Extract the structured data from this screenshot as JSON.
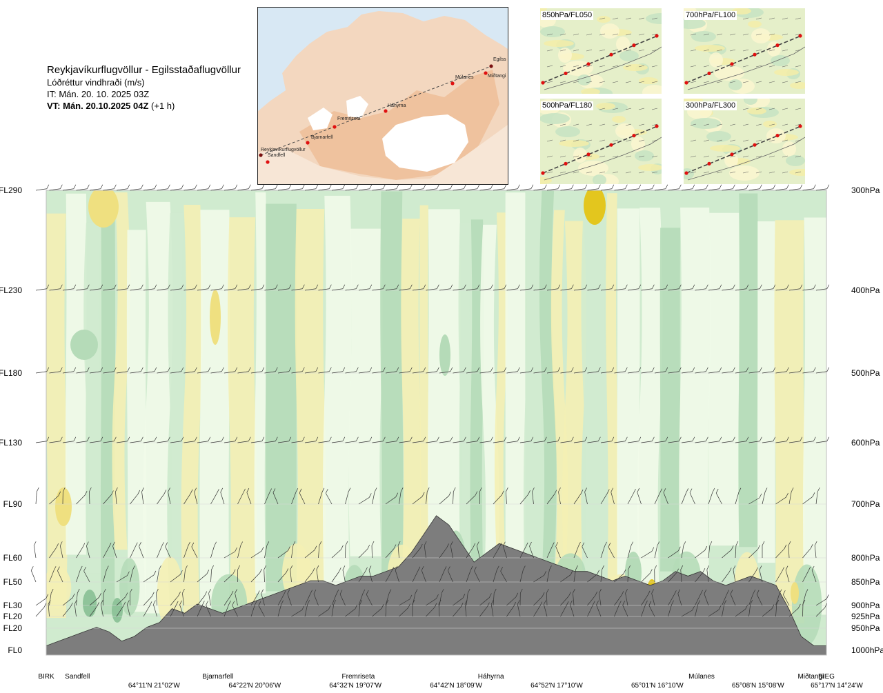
{
  "header": {
    "title": "Reykjavíkurflugvöllur - Egilsstaðaflugvöllur",
    "subtitle": "Lóðréttur vindhraði (m/s)",
    "issue_time": "IT: Mán. 20. 10. 2025 03Z",
    "valid_time": "VT: Mán. 20.10.2025 04Z",
    "valid_offset": "(+1 h)"
  },
  "route_map": {
    "points": [
      {
        "name": "Reykjavíkurflugvöllur"
      },
      {
        "name": "Sandfell"
      },
      {
        "name": "Bjarnarfell"
      },
      {
        "name": "Fremriseta"
      },
      {
        "name": "Háhyrna"
      },
      {
        "name": "Múlanes"
      },
      {
        "name": "Miðtangi"
      },
      {
        "name": "Egilss"
      }
    ]
  },
  "level_maps": [
    {
      "label": "850hPa/FL050"
    },
    {
      "label": "700hPa/FL100"
    },
    {
      "label": "500hPa/FL180"
    },
    {
      "label": "300hPa/FL300"
    }
  ],
  "chart_data": {
    "type": "heatmap",
    "title": "Lóðréttur vindhraði (m/s)",
    "x_axis": {
      "locations": [
        {
          "label": "BIRK",
          "frac": 0.0
        },
        {
          "label": "Sandfell",
          "frac": 0.04
        },
        {
          "label": "Bjarnarfell",
          "frac": 0.22
        },
        {
          "label": "Fremriseta",
          "frac": 0.4
        },
        {
          "label": "Háhyrna",
          "frac": 0.57
        },
        {
          "label": "Múlanes",
          "frac": 0.84
        },
        {
          "label": "Miðtangi",
          "frac": 0.98
        },
        {
          "label": "BIEG",
          "frac": 1.0
        }
      ],
      "coordinates": [
        {
          "label": "64°11'N 21°02'W",
          "frac": 0.125
        },
        {
          "label": "64°22'N 20°06'W",
          "frac": 0.254
        },
        {
          "label": "64°32'N 19°07'W",
          "frac": 0.383
        },
        {
          "label": "64°42'N 18°09'W",
          "frac": 0.512
        },
        {
          "label": "64°52'N 17°10'W",
          "frac": 0.641
        },
        {
          "label": "65°01'N 16°10'W",
          "frac": 0.77
        },
        {
          "label": "65°08'N 15°08'W",
          "frac": 0.899
        },
        {
          "label": "65°17'N 14°24'W",
          "frac": 1.0
        }
      ]
    },
    "left_axis": [
      "FL290",
      "FL230",
      "FL180",
      "FL130",
      "FL90",
      "FL60",
      "FL50",
      "FL30",
      "FL20",
      "FL20",
      "FL0"
    ],
    "right_axis": [
      "300hPa",
      "400hPa",
      "500hPa",
      "600hPa",
      "700hPa",
      "800hPa",
      "850hPa",
      "900hPa",
      "925hPa",
      "950hPa",
      "1000hPa"
    ],
    "terrain_elevation_fraction": [
      0.02,
      0.03,
      0.04,
      0.05,
      0.06,
      0.05,
      0.03,
      0.04,
      0.06,
      0.07,
      0.1,
      0.09,
      0.11,
      0.1,
      0.09,
      0.1,
      0.11,
      0.12,
      0.13,
      0.14,
      0.15,
      0.16,
      0.16,
      0.15,
      0.16,
      0.17,
      0.17,
      0.18,
      0.19,
      0.22,
      0.26,
      0.3,
      0.28,
      0.24,
      0.2,
      0.22,
      0.24,
      0.23,
      0.22,
      0.21,
      0.2,
      0.19,
      0.18,
      0.18,
      0.17,
      0.16,
      0.17,
      0.16,
      0.15,
      0.16,
      0.18,
      0.17,
      0.18,
      0.16,
      0.15,
      0.16,
      0.17,
      0.16,
      0.15,
      0.1,
      0.04,
      0.02,
      0.02
    ],
    "colors": {
      "strong_downdraft": "#8fc49a",
      "moderate_downdraft": "#b5dbb8",
      "weak_downdraft": "#d0ebcf",
      "neutral": "#f1fbe9",
      "weak_updraft": "#f4efb4",
      "moderate_updraft": "#efe080",
      "strong_updraft": "#e3c61e",
      "very_strong_updraft": "#d99a0e",
      "terrain": "#7d7d7d"
    }
  }
}
